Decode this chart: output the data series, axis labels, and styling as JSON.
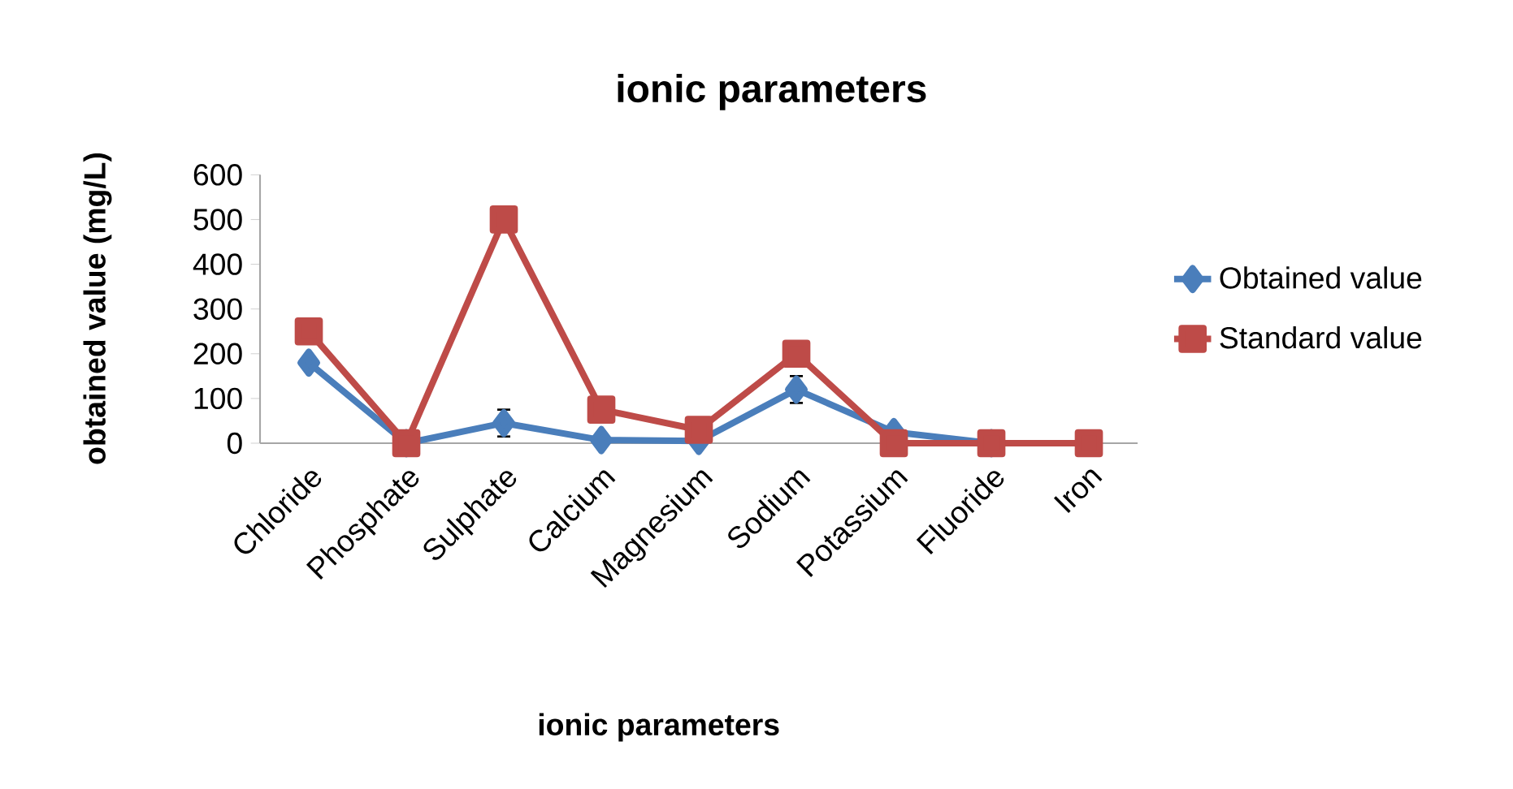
{
  "chart_data": {
    "type": "line",
    "title": "ionic parameters",
    "xlabel": "ionic parameters",
    "ylabel": "obtained value (mg/L)",
    "categories": [
      "Chloride",
      "Phosphate",
      "Sulphate",
      "Calcium",
      "Magnesium",
      "Sodium",
      "Potassium",
      "Fluoride",
      "Iron"
    ],
    "series": [
      {
        "name": "Obtained value",
        "color": "#4a7ebb",
        "marker": "diamond",
        "values": [
          180,
          0,
          45,
          7,
          5,
          120,
          25,
          0,
          null
        ],
        "errors": [
          null,
          null,
          30,
          null,
          null,
          30,
          null,
          null,
          null
        ]
      },
      {
        "name": "Standard value",
        "color": "#be4b48",
        "marker": "square",
        "values": [
          250,
          0,
          500,
          75,
          30,
          200,
          0,
          0,
          0
        ]
      }
    ],
    "ylim": [
      0,
      600
    ],
    "yticks": [
      0,
      100,
      200,
      300,
      400,
      500,
      600
    ],
    "legend": "right"
  }
}
